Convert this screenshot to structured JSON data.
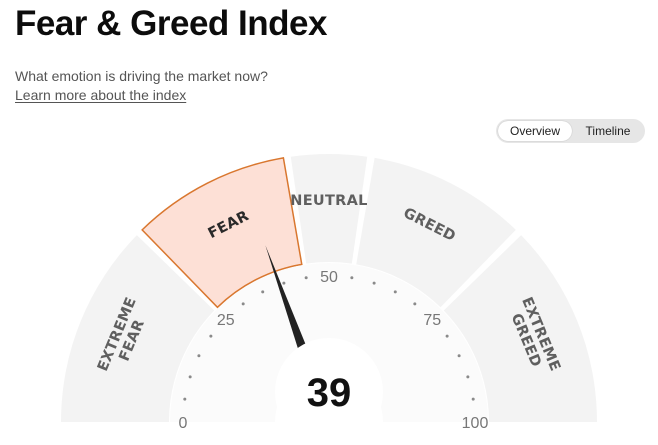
{
  "header": {
    "title": "Fear & Greed Index",
    "subtitle": "What emotion is driving the market now?",
    "learn_more": "Learn more about the index"
  },
  "view_toggle": {
    "options": [
      "Overview",
      "Timeline"
    ],
    "selected": "Overview"
  },
  "gauge": {
    "value": 39,
    "value_label": "39",
    "active_segment": "FEAR",
    "segments": [
      {
        "key": "extreme-fear",
        "lines": [
          "EXTREME",
          "FEAR"
        ],
        "from": 0,
        "to": 25
      },
      {
        "key": "fear",
        "lines": [
          "FEAR"
        ],
        "from": 25,
        "to": 45
      },
      {
        "key": "neutral",
        "lines": [
          "NEUTRAL"
        ],
        "from": 45,
        "to": 55
      },
      {
        "key": "greed",
        "lines": [
          "GREED"
        ],
        "from": 55,
        "to": 75
      },
      {
        "key": "extreme-greed",
        "lines": [
          "EXTREME",
          "GREED"
        ],
        "from": 75,
        "to": 100
      }
    ],
    "scale_labels": [
      {
        "value": 0,
        "text": "0"
      },
      {
        "value": 25,
        "text": "25"
      },
      {
        "value": 50,
        "text": "50"
      },
      {
        "value": 75,
        "text": "75"
      },
      {
        "value": 100,
        "text": "100"
      }
    ],
    "colors": {
      "segment_fill": "#f3f3f3",
      "active_fill": "#fde0d6",
      "active_stroke": "#d9772f",
      "inner_band": "#f7f7f7",
      "needle": "#222222",
      "tick_dot": "#8a8a8a"
    }
  }
}
